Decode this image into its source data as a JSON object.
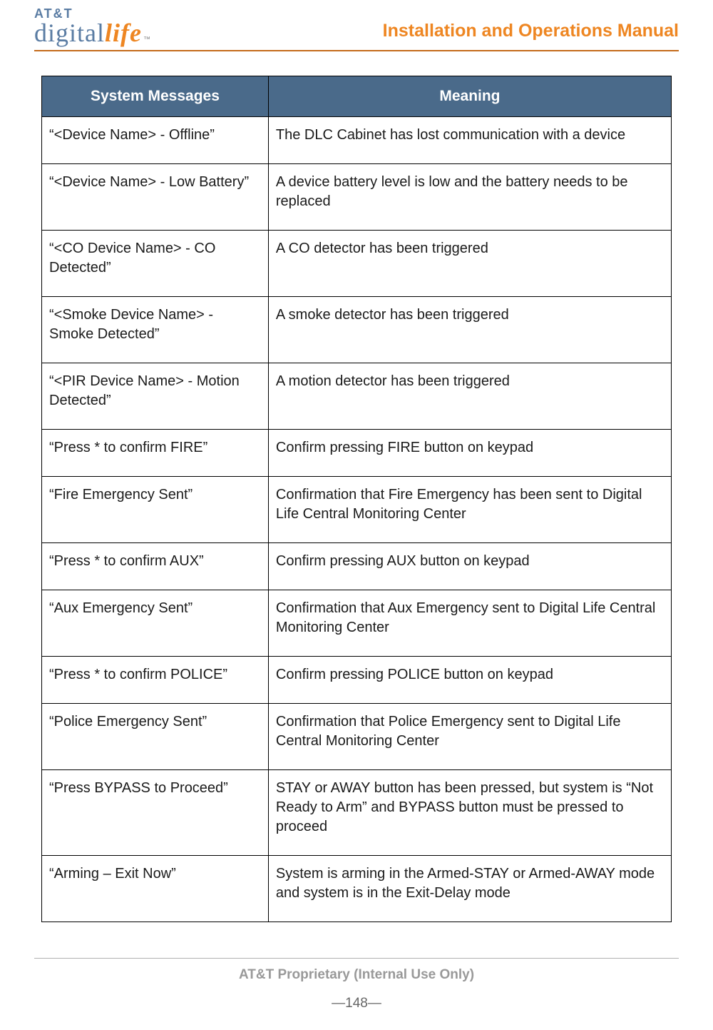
{
  "header": {
    "logo_top": "AT&T",
    "logo_left": "digital",
    "logo_right": "life",
    "logo_tm": "™",
    "manual_title": "Installation and Operations Manual"
  },
  "table": {
    "header_fill": "#4a6a8a",
    "header_text_color": "#ffffff",
    "border_color": "#000000",
    "font_size_pt": 15,
    "columns": [
      "System Messages",
      "Meaning"
    ],
    "col_widths_pct": [
      36,
      64
    ],
    "rows": [
      [
        "“<Device Name> - Offline”",
        "The DLC Cabinet has lost communication with a device"
      ],
      [
        "“<Device Name> - Low Battery”",
        "A device battery level is low and the battery needs to be replaced"
      ],
      [
        "“<CO Device Name> - CO Detected”",
        "A CO detector has been triggered"
      ],
      [
        "“<Smoke Device Name> - Smoke Detected”",
        "A smoke detector has been triggered"
      ],
      [
        "“<PIR Device Name> - Motion Detected”",
        "A motion detector has been triggered"
      ],
      [
        "“Press * to confirm FIRE”",
        "Confirm pressing FIRE button on keypad"
      ],
      [
        "“Fire Emergency Sent”",
        "Confirmation that Fire Emergency has been sent to Digital Life Central Monitoring Center"
      ],
      [
        "“Press * to confirm AUX”",
        "Confirm pressing AUX button on keypad"
      ],
      [
        "“Aux Emergency Sent”",
        "Confirmation that Aux Emergency sent to Digital Life Central Monitoring Center"
      ],
      [
        "“Press * to confirm POLICE”",
        "Confirm pressing POLICE button on keypad"
      ],
      [
        "“Police Emergency Sent”",
        "Confirmation that Police Emergency sent to Digital Life Central Monitoring Center"
      ],
      [
        "“Press BYPASS to Proceed”",
        "STAY or AWAY button has been pressed, but system is “Not Ready to Arm” and BYPASS button must be pressed to proceed"
      ],
      [
        "“Arming – Exit Now”",
        "System is arming in the Armed-STAY or Armed-AWAY mode and system is in the Exit-Delay mode"
      ]
    ]
  },
  "footer": {
    "proprietary": "AT&T Proprietary (Internal Use Only)",
    "page_num": "—148—"
  },
  "colors": {
    "accent_orange": "#ee8622",
    "brand_blue": "#5a7ca3",
    "gray_text": "#999999"
  }
}
